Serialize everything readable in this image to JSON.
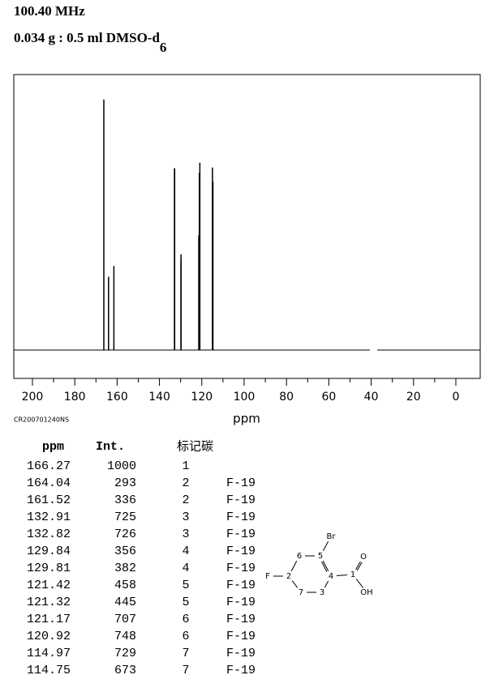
{
  "header": {
    "frequency": "100.40 MHz",
    "sample": "0.034 g : 0.5 ml DMSO-d",
    "sample_subscript": "6"
  },
  "chart_data": {
    "type": "stick",
    "xlabel": "ppm",
    "note": "CR200701240NS",
    "x": [
      166.27,
      164.04,
      161.52,
      132.91,
      132.82,
      129.84,
      129.81,
      121.42,
      121.32,
      121.17,
      120.92,
      114.97,
      114.75
    ],
    "values": [
      1000,
      293,
      336,
      725,
      726,
      356,
      382,
      458,
      445,
      707,
      748,
      729,
      673
    ],
    "color": "#000000",
    "xlim": [
      208.8,
      -11.5
    ],
    "ylim": [
      -113,
      1100
    ],
    "xticks": [
      200,
      180,
      160,
      140,
      120,
      100,
      80,
      60,
      40,
      20,
      0
    ],
    "xminorticks": [
      190,
      170,
      150,
      130,
      110,
      90,
      70,
      50,
      30,
      10
    ]
  },
  "table": {
    "columns": [
      "ppm",
      "Int.",
      "标记碳"
    ],
    "carbons": [
      1,
      2,
      2,
      3,
      3,
      4,
      4,
      5,
      5,
      6,
      6,
      7,
      7
    ],
    "couplings": [
      null,
      "F-19",
      "F-19",
      "F-19",
      "F-19",
      "F-19",
      "F-19",
      "F-19",
      "F-19",
      "F-19",
      "F-19",
      "F-19",
      "F-19"
    ]
  },
  "structure": {
    "atoms": [
      "Br",
      "5",
      "6",
      "F",
      "2",
      "4",
      "1",
      "O",
      "OH",
      "7",
      "3"
    ]
  }
}
